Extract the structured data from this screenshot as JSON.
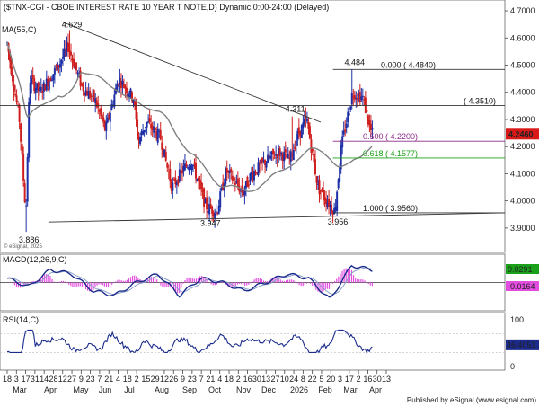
{
  "header": {
    "title": "($TNX-CGI - CBOE INTEREST RATE 10 YEAR T NOTE,D) Dynamic,0:00-24:00 (Delayed)",
    "ma_label": "MA(55,C)",
    "watermark": "© eSignal, 2025",
    "publisher": "Published by eSignal (www.esignal.com)"
  },
  "colors": {
    "up": "#1c2fa6",
    "down": "#d01f1f",
    "ma": "#808080",
    "macd": "#1a2b8c",
    "signal": "#8aa0c8",
    "hist": "#e24de0",
    "rsi": "#1a2b8c",
    "fib_purple": "#8a2a8a",
    "fib_green": "#18a018",
    "last_price": "#d91818"
  },
  "chart_data": [
    {
      "type": "candlestick",
      "title": "($TNX-CGI - CBOE INTEREST RATE 10 YEAR T NOTE,D) Dynamic,0:00-24:00 (Delayed)",
      "ylim": [
        3.85,
        4.72
      ],
      "yticks": [
        "4.7000",
        "4.6000",
        "4.5000",
        "4.4000",
        "4.3000",
        "4.2000",
        "4.1000",
        "4.0000",
        "3.9000"
      ],
      "x_ticks_day": [
        "18",
        "3",
        "17",
        "31",
        "14",
        "28",
        "12",
        "27",
        "9",
        "23",
        "7",
        "21",
        "4",
        "18",
        "2",
        "15",
        "29",
        "12",
        "26",
        "9",
        "23",
        "7",
        "21",
        "4",
        "18",
        "2",
        "16",
        "30",
        "13",
        "27",
        "10",
        "24",
        "8",
        "22",
        "5",
        "20",
        "3",
        "17",
        "2",
        "16",
        "30",
        "13"
      ],
      "x_ticks_month": [
        "Mar",
        "Apr",
        "May",
        "Jun",
        "Jul",
        "Aug",
        "Sep",
        "Oct",
        "Nov",
        "Dec",
        "2026",
        "Feb",
        "Mar",
        "Apr"
      ],
      "annotations": [
        "3.886",
        "4.629",
        "4.484",
        "4.311",
        "3.947",
        "3.956"
      ],
      "fib_levels": [
        {
          "ratio": "0.000",
          "value": 4.484,
          "label": "0.000 ( 4.4840)"
        },
        {
          "ratio": "0.500",
          "value": 4.22,
          "label": "0.500 ( 4.2200)"
        },
        {
          "ratio": "0.618",
          "value": 4.1577,
          "label": "0.618 ( 4.1577)"
        },
        {
          "ratio": "1.000",
          "value": 3.956,
          "label": "1.000 ( 3.9560)"
        }
      ],
      "resistance": {
        "value": 4.351,
        "label": "( 4.3510)"
      },
      "last_price": "4.2460",
      "anchors": [
        {
          "label": "18 Mar",
          "value": 4.58
        },
        {
          "label": "31 Mar",
          "value": 4.3
        },
        {
          "label": "7 Apr",
          "value": 3.95
        },
        {
          "label": "11 Apr",
          "value": 4.45
        },
        {
          "label": "22 Apr",
          "value": 4.4
        },
        {
          "label": "12 May",
          "value": 4.5
        },
        {
          "label": "22 May",
          "value": 4.57
        },
        {
          "label": "6 Jun",
          "value": 4.42
        },
        {
          "label": "20 Jun",
          "value": 4.37
        },
        {
          "label": "1 Jul",
          "value": 4.26
        },
        {
          "label": "15 Jul",
          "value": 4.45
        },
        {
          "label": "31 Jul",
          "value": 4.38
        },
        {
          "label": "5 Aug",
          "value": 4.22
        },
        {
          "label": "14 Aug",
          "value": 4.29
        },
        {
          "label": "29 Aug",
          "value": 4.23
        },
        {
          "label": "10 Sep",
          "value": 4.05
        },
        {
          "label": "23 Sep",
          "value": 4.12
        },
        {
          "label": "1 Oct",
          "value": 4.15
        },
        {
          "label": "16 Oct",
          "value": 3.98
        },
        {
          "label": "28 Oct",
          "value": 3.96
        },
        {
          "label": "7 Nov",
          "value": 4.11
        },
        {
          "label": "25 Nov",
          "value": 4.03
        },
        {
          "label": "4 Dec",
          "value": 4.1
        },
        {
          "label": "17 Dec",
          "value": 4.14
        },
        {
          "label": "2 Jan",
          "value": 4.18
        },
        {
          "label": "14 Jan",
          "value": 4.15
        },
        {
          "label": "22 Jan",
          "value": 4.24
        },
        {
          "label": "1 Feb",
          "value": 4.3
        },
        {
          "label": "13 Feb",
          "value": 4.05
        },
        {
          "label": "3 Mar",
          "value": 3.96
        },
        {
          "label": "10 Mar",
          "value": 4.2
        },
        {
          "label": "22 Mar",
          "value": 4.4
        },
        {
          "label": "2 Apr",
          "value": 4.38
        },
        {
          "label": "10 Apr",
          "value": 4.26
        },
        {
          "label": "13 Apr",
          "value": 4.246
        }
      ]
    },
    {
      "type": "line",
      "title": "MACD(12,26,9,C)",
      "ylim": [
        -0.06,
        0.06
      ],
      "values_shown": [
        "0.0291",
        "-0.0164"
      ],
      "series": [
        {
          "name": "MACD",
          "values": [
            0.01,
            -0.01,
            0.03,
            0.02,
            -0.02,
            -0.03,
            0.0,
            0.02,
            -0.03,
            0.01,
            0.0,
            -0.02,
            0.0,
            0.02,
            0.01,
            -0.04,
            0.04,
            0.029
          ]
        }
      ]
    },
    {
      "type": "line",
      "title": "RSI(14,C)",
      "ylim": [
        0,
        100
      ],
      "yticks": [
        "100",
        "50",
        "0"
      ],
      "value_shown": "46.4051"
    }
  ]
}
